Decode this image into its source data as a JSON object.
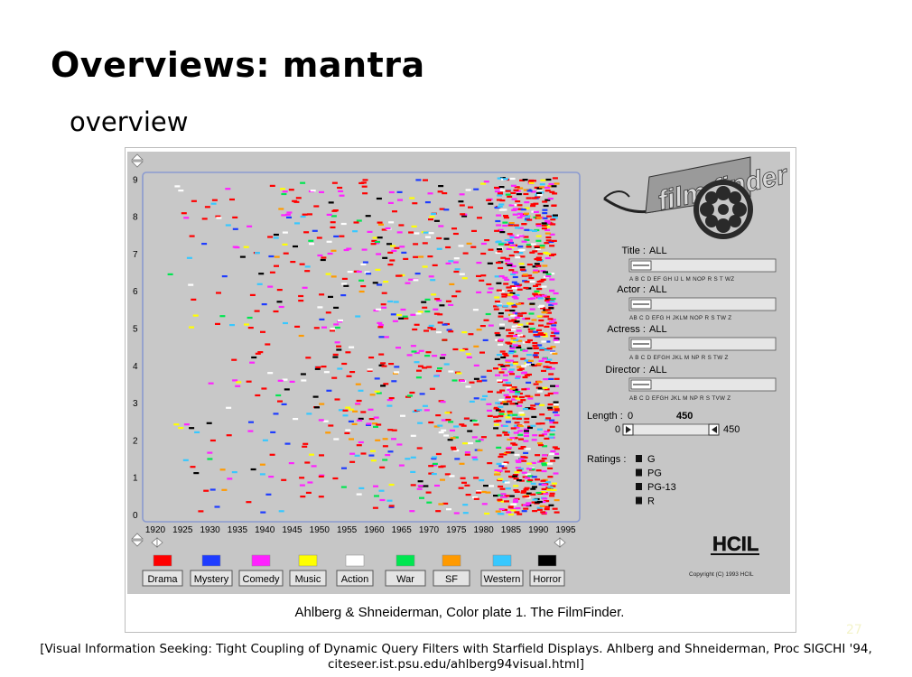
{
  "slide": {
    "title": "Overviews: mantra",
    "subtitle": "overview",
    "page_number": "27",
    "citation_line1": "[Visual Information Seeking: Tight Coupling of Dynamic Query Filters with Starfield Displays. Ahlberg and Shneiderman, Proc SIGCHI '94,",
    "citation_line2": "citeseer.ist.psu.edu/ahlberg94visual.html]"
  },
  "screenshot": {
    "caption": "Ahlberg & Shneiderman, Color plate 1. The FilmFinder.",
    "logo_text": "film finder",
    "copyright": "Copyright (C) 1993 HCIL",
    "hcil_logo": "HCIL",
    "y_ticks": [
      "0",
      "1",
      "2",
      "3",
      "4",
      "5",
      "6",
      "7",
      "8",
      "9"
    ],
    "x_ticks": [
      "1920",
      "1925",
      "1930",
      "1935",
      "1940",
      "1945",
      "1950",
      "1955",
      "1960",
      "1965",
      "1970",
      "1975",
      "1980",
      "1985",
      "1990",
      "1995"
    ],
    "genres": [
      {
        "label": "Drama",
        "color": "#ff0000"
      },
      {
        "label": "Mystery",
        "color": "#1e3cff"
      },
      {
        "label": "Comedy",
        "color": "#ff22ff"
      },
      {
        "label": "Music",
        "color": "#ffff00"
      },
      {
        "label": "Action",
        "color": "#ffffff"
      },
      {
        "label": "War",
        "color": "#00e650"
      },
      {
        "label": "SF",
        "color": "#ff9a00"
      },
      {
        "label": "Western",
        "color": "#37c8ff"
      },
      {
        "label": "Horror",
        "color": "#000000"
      }
    ],
    "filters": [
      {
        "label": "Title :",
        "value": "ALL",
        "alphabet": "A B C D EF GH IJ L M NOP R S T WZ"
      },
      {
        "label": "Actor :",
        "value": "ALL",
        "alphabet": "AB C D EFG H JKLM NOP R S TW Z"
      },
      {
        "label": "Actress :",
        "value": "ALL",
        "alphabet": "A B C D EFGH JKL M NP R S TW Z"
      },
      {
        "label": "Director :",
        "value": "ALL",
        "alphabet": "AB C D EFGH JKL M NP R S TVW Z"
      }
    ],
    "length": {
      "label": "Length :",
      "min": "0",
      "max": "450",
      "low_value": "0",
      "high_value": "450"
    },
    "ratings": {
      "label": "Ratings :",
      "options": [
        "G",
        "PG",
        "PG-13",
        "R"
      ]
    }
  }
}
